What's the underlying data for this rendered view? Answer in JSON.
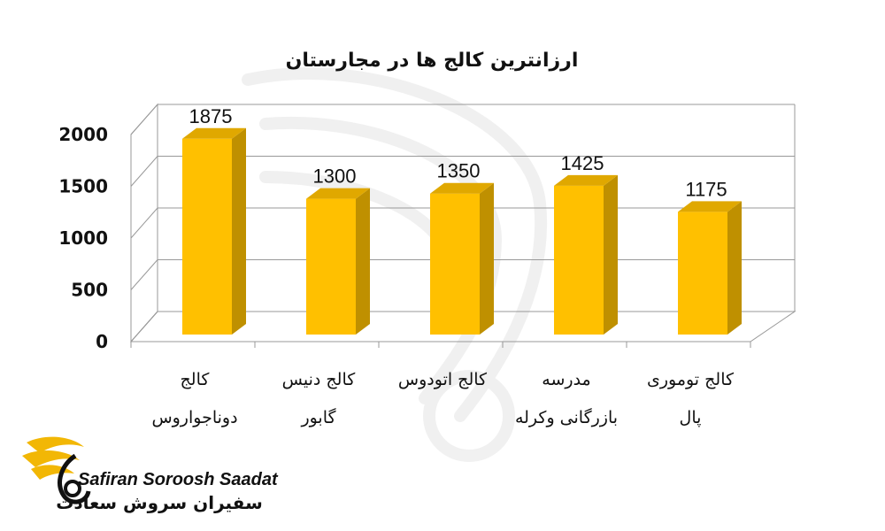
{
  "chart_data": {
    "type": "bar",
    "title": "ارزانترین کالج ها در مجارستان",
    "categories": [
      [
        "کالج",
        "دوناجواروس"
      ],
      [
        "کالج دنیس",
        "گابور"
      ],
      [
        "کالج اتودوس",
        ""
      ],
      [
        "مدرسه",
        "بازرگانی وکرله"
      ],
      [
        "کالج توموری",
        "پال"
      ]
    ],
    "values": [
      1875,
      1300,
      1350,
      1425,
      1175
    ],
    "yticks": [
      "0",
      "500",
      "1000",
      "1500",
      "2000"
    ],
    "ylim": [
      0,
      2000
    ],
    "grid": true,
    "bar_color": "#FFC000",
    "bar_side_color": "#BF9000",
    "bar_top_color": "#E0A800"
  },
  "logo": {
    "name_en": "Safiran Soroosh Saadat",
    "name_fa": "سفیران سروش سعادت",
    "accent": "#F2B705"
  }
}
